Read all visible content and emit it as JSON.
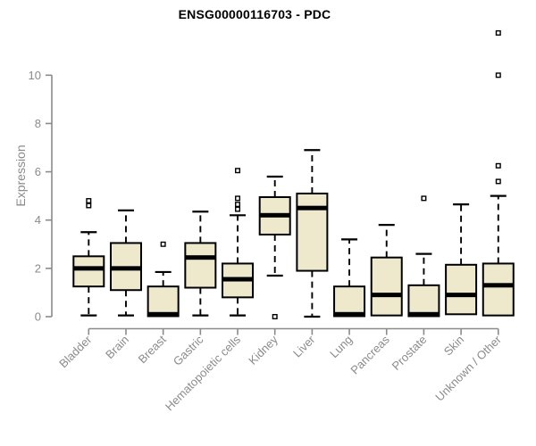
{
  "chart_data": {
    "type": "boxplot",
    "title": "ENSG00000116703 - PDC",
    "ylabel": "Expression",
    "xlabel": "",
    "yticks": [
      0,
      2,
      4,
      6,
      8,
      10
    ],
    "ylim": [
      0,
      11.9
    ],
    "grid": false,
    "legend": false,
    "x_label_rotation_deg": 45,
    "categories": [
      "Bladder",
      "Brain",
      "Breast",
      "Gastric",
      "Hematopoietic cells",
      "Kidney",
      "Liver",
      "Lung",
      "Pancreas",
      "Prostate",
      "Skin",
      "Unknown / Other"
    ],
    "boxes": [
      {
        "label": "Bladder",
        "low": 0.05,
        "q1": 1.25,
        "median": 2.0,
        "q3": 2.5,
        "high": 3.5,
        "outliers": [
          4.6,
          4.8
        ]
      },
      {
        "label": "Brain",
        "low": 0.05,
        "q1": 1.1,
        "median": 2.0,
        "q3": 3.05,
        "high": 4.4,
        "outliers": []
      },
      {
        "label": "Breast",
        "low": 0.02,
        "q1": 0.02,
        "median": 0.1,
        "q3": 1.25,
        "high": 1.85,
        "outliers": [
          3.0
        ]
      },
      {
        "label": "Gastric",
        "low": 0.05,
        "q1": 1.2,
        "median": 2.45,
        "q3": 3.05,
        "high": 4.35,
        "outliers": []
      },
      {
        "label": "Hematopoietic cells",
        "low": 0.05,
        "q1": 0.8,
        "median": 1.55,
        "q3": 2.2,
        "high": 4.2,
        "outliers": [
          4.45,
          4.65,
          4.9,
          6.05
        ]
      },
      {
        "label": "Kidney",
        "low": 1.7,
        "q1": 3.4,
        "median": 4.2,
        "q3": 4.95,
        "high": 5.8,
        "outliers": [
          0.0
        ]
      },
      {
        "label": "Liver",
        "low": 0.0,
        "q1": 1.9,
        "median": 4.5,
        "q3": 5.1,
        "high": 6.9,
        "outliers": []
      },
      {
        "label": "Lung",
        "low": 0.02,
        "q1": 0.02,
        "median": 0.1,
        "q3": 1.25,
        "high": 3.2,
        "outliers": []
      },
      {
        "label": "Pancreas",
        "low": 0.05,
        "q1": 0.05,
        "median": 0.9,
        "q3": 2.45,
        "high": 3.8,
        "outliers": []
      },
      {
        "label": "Prostate",
        "low": 0.02,
        "q1": 0.02,
        "median": 0.1,
        "q3": 1.3,
        "high": 2.6,
        "outliers": [
          4.9
        ]
      },
      {
        "label": "Skin",
        "low": 0.1,
        "q1": 0.1,
        "median": 0.9,
        "q3": 2.15,
        "high": 4.65,
        "outliers": []
      },
      {
        "label": "Unknown / Other",
        "low": 0.05,
        "q1": 0.05,
        "median": 1.3,
        "q3": 2.2,
        "high": 5.0,
        "outliers": [
          5.6,
          6.25,
          10.0,
          11.75
        ]
      }
    ],
    "colors": {
      "box_fill": "#EEE8CD",
      "box_stroke": "#000000",
      "median": "#000000",
      "whisker": "#000000",
      "outlier_fill": "#FFFFFF",
      "axis": "#8B8B8B",
      "tick_label": "#8B8B8B",
      "title": "#000000",
      "background": "#FFFFFF"
    }
  }
}
